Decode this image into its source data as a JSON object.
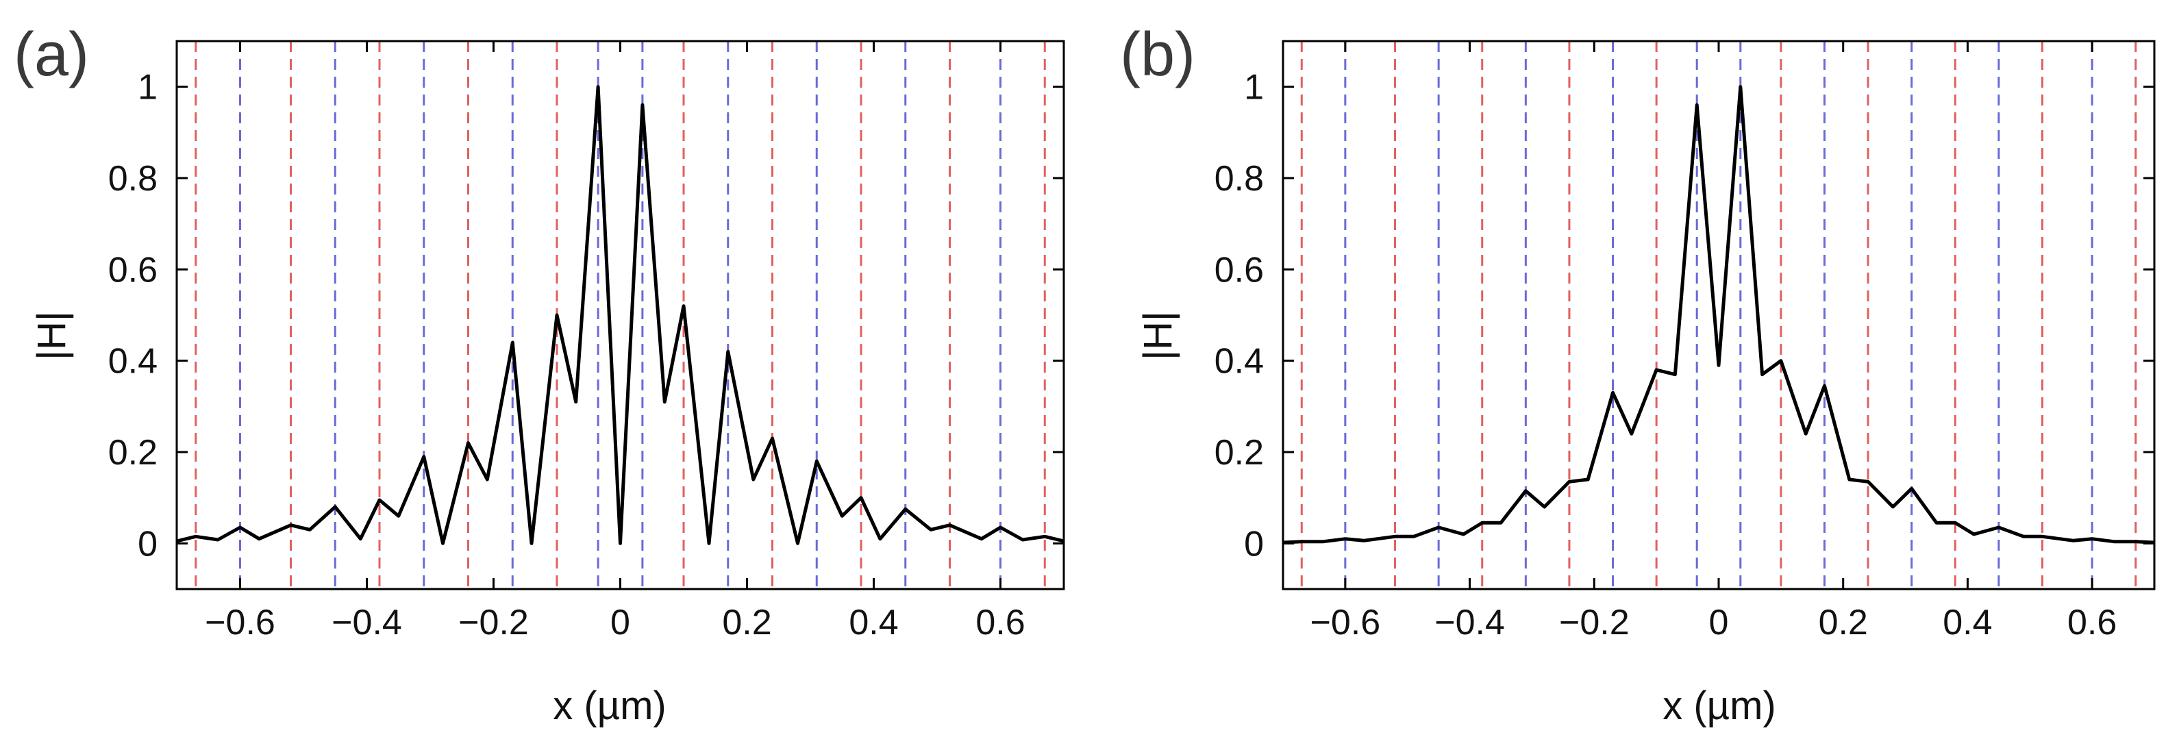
{
  "chart_data": [
    {
      "type": "line",
      "panel_label": "(a)",
      "xlabel": "x (µm)",
      "ylabel": "|H|",
      "xlim": [
        -0.7,
        0.7
      ],
      "ylim": [
        -0.1,
        1.1
      ],
      "xticks": [
        -0.6,
        -0.4,
        -0.2,
        0,
        0.2,
        0.4,
        0.6
      ],
      "xtick_labels": [
        "−0.6",
        "−0.4",
        "−0.2",
        "0",
        "0.2",
        "0.4",
        "0.6"
      ],
      "yticks": [
        0,
        0.2,
        0.4,
        0.6,
        0.8,
        1
      ],
      "ytick_labels": [
        "0",
        "0.2",
        "0.4",
        "0.6",
        "0.8",
        "1"
      ],
      "grid": false,
      "vlines_red": [
        -0.67,
        -0.52,
        -0.38,
        -0.24,
        -0.1,
        0.1,
        0.24,
        0.38,
        0.52,
        0.67
      ],
      "vlines_blue": [
        -0.6,
        -0.45,
        -0.31,
        -0.17,
        -0.035,
        0.035,
        0.17,
        0.31,
        0.45,
        0.6
      ],
      "line_color": "#000000",
      "red_color": "#e06060",
      "blue_color": "#6a6ad8",
      "series": [
        {
          "x": [
            -0.7,
            -0.67,
            -0.635,
            -0.6,
            -0.57,
            -0.52,
            -0.49,
            -0.45,
            -0.41,
            -0.38,
            -0.35,
            -0.31,
            -0.28,
            -0.24,
            -0.21,
            -0.17,
            -0.14,
            -0.1,
            -0.07,
            -0.035,
            0,
            0.035,
            0.07,
            0.1,
            0.14,
            0.17,
            0.21,
            0.24,
            0.28,
            0.31,
            0.35,
            0.38,
            0.41,
            0.45,
            0.49,
            0.52,
            0.57,
            0.6,
            0.635,
            0.67,
            0.7
          ],
          "y": [
            0.005,
            0.015,
            0.008,
            0.035,
            0.01,
            0.04,
            0.03,
            0.08,
            0.01,
            0.095,
            0.06,
            0.19,
            0.0,
            0.22,
            0.14,
            0.44,
            0.0,
            0.5,
            0.31,
            1.0,
            0.0,
            0.96,
            0.31,
            0.52,
            0.0,
            0.42,
            0.14,
            0.23,
            0.0,
            0.18,
            0.06,
            0.1,
            0.01,
            0.075,
            0.03,
            0.04,
            0.01,
            0.035,
            0.008,
            0.015,
            0.005
          ]
        }
      ]
    },
    {
      "type": "line",
      "panel_label": "(b)",
      "xlabel": "x (µm)",
      "ylabel": "|H|",
      "xlim": [
        -0.7,
        0.7
      ],
      "ylim": [
        -0.1,
        1.1
      ],
      "xticks": [
        -0.6,
        -0.4,
        -0.2,
        0,
        0.2,
        0.4,
        0.6
      ],
      "xtick_labels": [
        "−0.6",
        "−0.4",
        "−0.2",
        "0",
        "0.2",
        "0.4",
        "0.6"
      ],
      "yticks": [
        0,
        0.2,
        0.4,
        0.6,
        0.8,
        1
      ],
      "ytick_labels": [
        "0",
        "0.2",
        "0.4",
        "0.6",
        "0.8",
        "1"
      ],
      "grid": false,
      "vlines_red": [
        -0.67,
        -0.52,
        -0.38,
        -0.24,
        -0.1,
        0.1,
        0.24,
        0.38,
        0.52,
        0.67
      ],
      "vlines_blue": [
        -0.6,
        -0.45,
        -0.31,
        -0.17,
        -0.035,
        0.035,
        0.17,
        0.31,
        0.45,
        0.6
      ],
      "line_color": "#000000",
      "red_color": "#e06060",
      "blue_color": "#6a6ad8",
      "series": [
        {
          "x": [
            -0.7,
            -0.67,
            -0.635,
            -0.6,
            -0.57,
            -0.52,
            -0.49,
            -0.45,
            -0.41,
            -0.38,
            -0.35,
            -0.31,
            -0.28,
            -0.24,
            -0.21,
            -0.17,
            -0.14,
            -0.1,
            -0.07,
            -0.035,
            0,
            0.035,
            0.07,
            0.1,
            0.14,
            0.17,
            0.21,
            0.24,
            0.28,
            0.31,
            0.35,
            0.38,
            0.41,
            0.45,
            0.49,
            0.52,
            0.57,
            0.6,
            0.635,
            0.67,
            0.7
          ],
          "y": [
            0.002,
            0.004,
            0.004,
            0.01,
            0.006,
            0.015,
            0.015,
            0.035,
            0.02,
            0.045,
            0.045,
            0.115,
            0.08,
            0.135,
            0.14,
            0.33,
            0.24,
            0.38,
            0.37,
            0.96,
            0.39,
            1.0,
            0.37,
            0.4,
            0.24,
            0.345,
            0.14,
            0.135,
            0.08,
            0.12,
            0.045,
            0.045,
            0.02,
            0.035,
            0.015,
            0.015,
            0.006,
            0.01,
            0.004,
            0.004,
            0.002
          ]
        }
      ]
    }
  ]
}
